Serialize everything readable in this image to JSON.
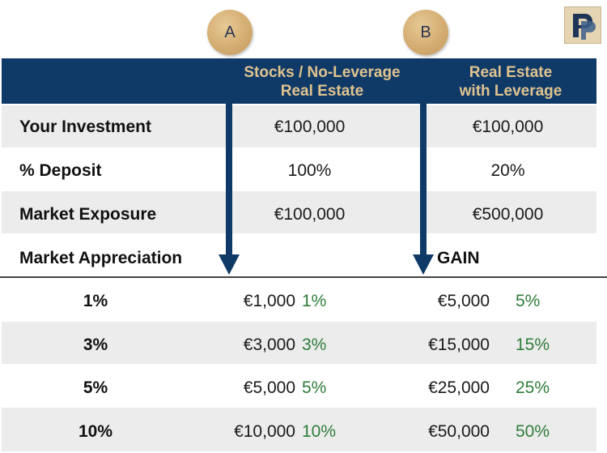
{
  "markers": {
    "a": "A",
    "b": "B"
  },
  "columns": {
    "a_line1": "Stocks / No-Leverage",
    "a_line2": "Real Estate",
    "b_line1": "Real Estate",
    "b_line2": "with Leverage"
  },
  "rows": {
    "investment": {
      "label": "Your Investment",
      "a": "€100,000",
      "b": "€100,000"
    },
    "deposit": {
      "label": "% Deposit",
      "a": "100%",
      "b": "20%"
    },
    "exposure": {
      "label": "Market Exposure",
      "a": "€100,000",
      "b": "€500,000"
    },
    "appreciation": {
      "label": "Market Appreciation",
      "b": "GAIN"
    }
  },
  "scenarios": [
    {
      "pct": "1%",
      "a_value": "€1,000",
      "a_gain": "1%",
      "b_value": "€5,000",
      "b_gain": "5%"
    },
    {
      "pct": "3%",
      "a_value": "€3,000",
      "a_gain": "3%",
      "b_value": "€15,000",
      "b_gain": "15%"
    },
    {
      "pct": "5%",
      "a_value": "€5,000",
      "a_gain": "5%",
      "b_value": "€25,000",
      "b_gain": "25%"
    },
    {
      "pct": "10%",
      "a_value": "€10,000",
      "a_gain": "10%",
      "b_value": "€50,000",
      "b_gain": "50%"
    }
  ],
  "logo": {
    "letter": "P"
  },
  "colors": {
    "header": "#0f3a68",
    "header_text": "#e0c38e",
    "gain_text": "#2f7d3a",
    "marker": "#d4ad72",
    "row_shade": "#ececec"
  },
  "icons": {
    "arrow": "arrow-down-icon",
    "logo": "logo-icon"
  }
}
